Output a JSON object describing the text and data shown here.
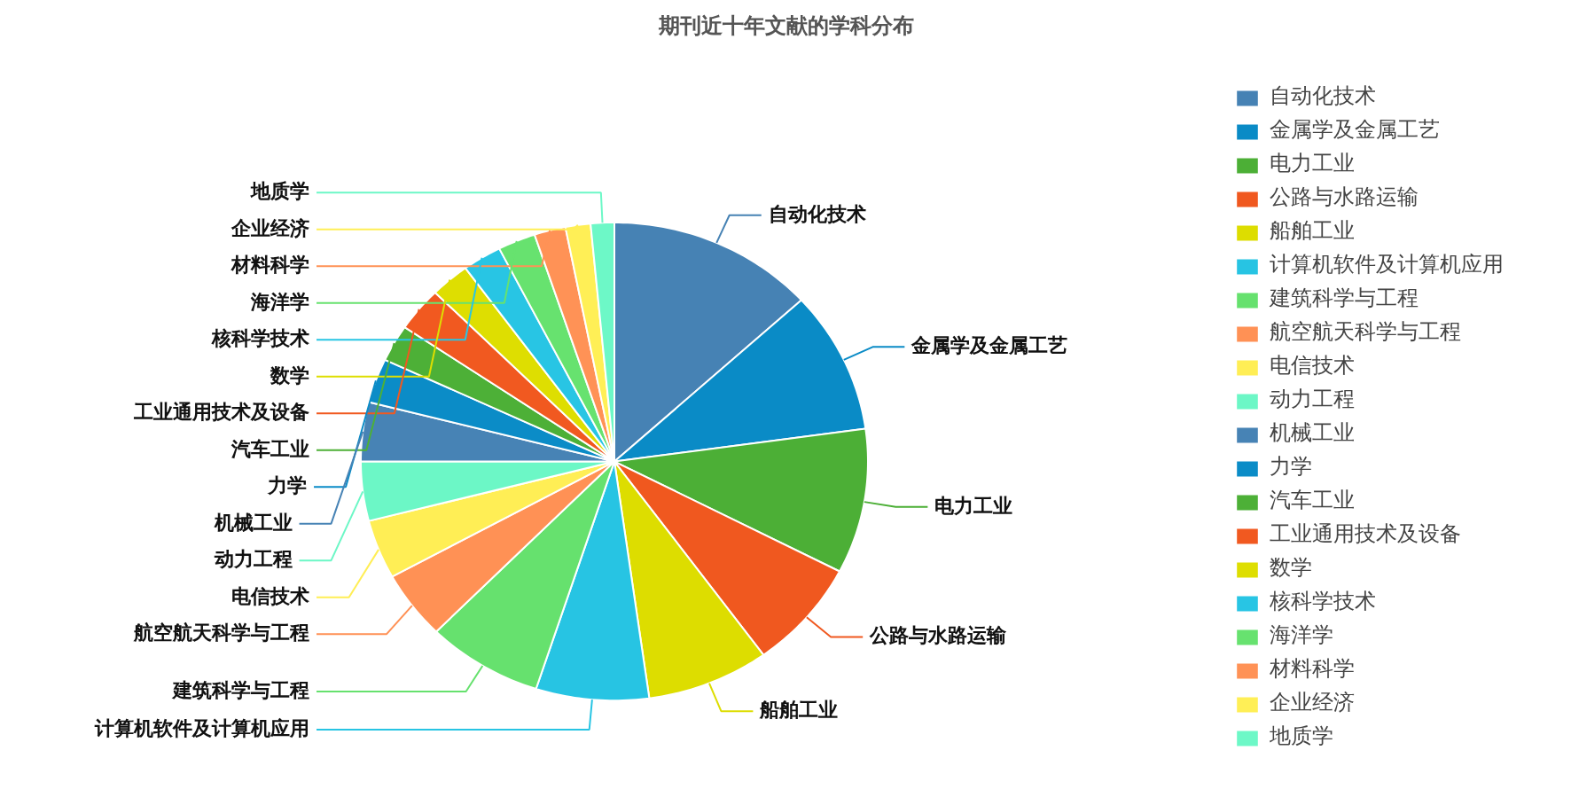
{
  "chart_data": {
    "type": "pie",
    "title": "期刊近十年文献的学科分布",
    "legend": "right",
    "categories": [
      "自动化技术",
      "金属学及金属工艺",
      "电力工业",
      "公路与水路运输",
      "船舶工业",
      "计算机软件及计算机应用",
      "建筑科学与工程",
      "航空航天科学与工程",
      "电信技术",
      "动力工程",
      "机械工业",
      "力学",
      "汽车工业",
      "工业通用技术及设备",
      "数学",
      "核科学技术",
      "海洋学",
      "材料科学",
      "企业经济",
      "地质学"
    ],
    "values": [
      13.2,
      9.6,
      9.8,
      7.4,
      7.8,
      7.2,
      7.4,
      4.6,
      4.0,
      4.0,
      4.0,
      3.0,
      2.5,
      3.0,
      2.5,
      2.5,
      2.4,
      2.0,
      1.6,
      1.5
    ],
    "colors": [
      "#4682b4",
      "#0a8bc6",
      "#4caf36",
      "#f0581f",
      "#dddd00",
      "#27c4e3",
      "#66e16e",
      "#ff9155",
      "#ffee55",
      "#6cf7c6",
      "#4783b5",
      "#0b8cc7",
      "#4db037",
      "#f15920",
      "#dede01",
      "#28c5e4",
      "#67e26f",
      "#ff9256",
      "#ffef56",
      "#6df8c7"
    ]
  }
}
